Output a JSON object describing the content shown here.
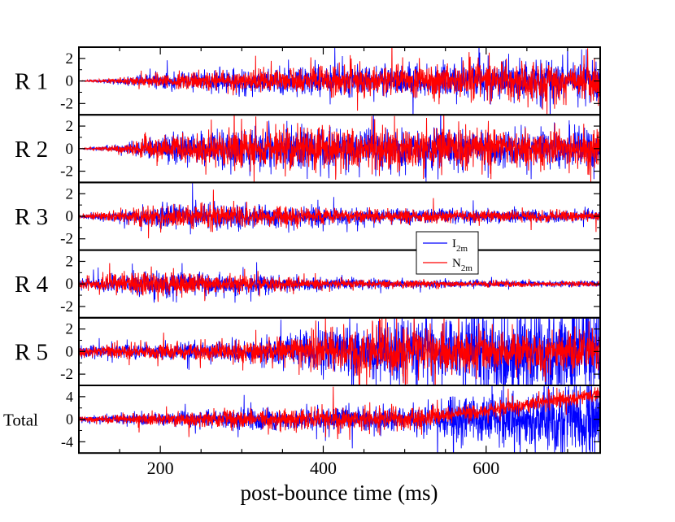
{
  "chart_data": {
    "type": "line",
    "xlabel": "post-bounce time (ms)",
    "xlim": [
      100,
      740
    ],
    "xticks": [
      200,
      400,
      600
    ],
    "legend": {
      "placement": "right-middle",
      "entries": [
        {
          "series": "I2m",
          "base": "I",
          "sub": "2m",
          "color": "#0000ff"
        },
        {
          "series": "N2m",
          "base": "N",
          "sub": "2m",
          "color": "#ff0000"
        }
      ]
    },
    "panels": [
      {
        "label": "R 1",
        "ylim": [
          -3,
          3
        ],
        "yticks": [
          -2,
          0,
          2
        ],
        "series": {
          "I2m": {
            "t": [
              100,
              150,
              200,
              300,
              400,
              500,
              600,
              740
            ],
            "amp": [
              0.0,
              0.3,
              0.8,
              1.2,
              1.5,
              1.6,
              1.8,
              2.0
            ]
          },
          "N2m": {
            "t": [
              100,
              150,
              200,
              300,
              400,
              500,
              600,
              740
            ],
            "amp": [
              0.0,
              0.3,
              0.7,
              1.1,
              1.4,
              1.6,
              2.0,
              2.3
            ]
          }
        }
      },
      {
        "label": "R 2",
        "ylim": [
          -3,
          3
        ],
        "yticks": [
          -2,
          0,
          2
        ],
        "series": {
          "I2m": {
            "t": [
              100,
              150,
              200,
              300,
              400,
              500,
              600,
              740
            ],
            "amp": [
              0.0,
              0.4,
              1.2,
              2.0,
              2.3,
              2.0,
              2.0,
              1.8
            ]
          },
          "N2m": {
            "t": [
              100,
              150,
              200,
              300,
              400,
              500,
              600,
              740
            ],
            "amp": [
              0.0,
              0.4,
              1.2,
              2.0,
              2.2,
              2.0,
              2.1,
              2.0
            ]
          }
        }
      },
      {
        "label": "R 3",
        "ylim": [
          -3,
          3
        ],
        "yticks": [
          -2,
          0,
          2
        ],
        "series": {
          "I2m": {
            "t": [
              100,
              150,
              200,
              300,
              400,
              500,
              600,
              740
            ],
            "amp": [
              0.2,
              0.6,
              1.2,
              1.2,
              0.9,
              0.8,
              0.7,
              0.6
            ]
          },
          "N2m": {
            "t": [
              100,
              150,
              200,
              300,
              400,
              500,
              600,
              740
            ],
            "amp": [
              0.2,
              0.6,
              1.1,
              1.1,
              0.8,
              0.7,
              0.6,
              0.5
            ]
          }
        }
      },
      {
        "label": "R 4",
        "ylim": [
          -3,
          3
        ],
        "yticks": [
          -2,
          0,
          2
        ],
        "series": {
          "I2m": {
            "t": [
              100,
              150,
              200,
              300,
              400,
              500,
              600,
              740
            ],
            "amp": [
              0.4,
              1.0,
              1.4,
              0.9,
              0.6,
              0.45,
              0.35,
              0.3
            ]
          },
          "N2m": {
            "t": [
              100,
              150,
              200,
              300,
              400,
              500,
              600,
              740
            ],
            "amp": [
              0.4,
              1.0,
              1.3,
              0.8,
              0.5,
              0.4,
              0.3,
              0.25
            ]
          }
        }
      },
      {
        "label": "R 5",
        "ylim": [
          -3,
          3
        ],
        "yticks": [
          -2,
          0,
          2
        ],
        "series": {
          "I2m": {
            "t": [
              100,
              200,
              300,
              350,
              400,
              500,
              600,
              740
            ],
            "amp": [
              0.6,
              0.8,
              1.0,
              1.5,
              2.2,
              3.2,
              4.5,
              5.0
            ]
          },
          "N2m": {
            "t": [
              100,
              200,
              300,
              350,
              400,
              500,
              600,
              740
            ],
            "amp": [
              0.6,
              0.8,
              1.0,
              1.5,
              2.0,
              2.6,
              2.0,
              1.8
            ]
          }
        }
      },
      {
        "label": "Total",
        "ylim": [
          -6,
          6
        ],
        "yticks": [
          -4,
          0,
          4
        ],
        "series": {
          "I2m": {
            "t": [
              100,
              200,
              300,
              400,
              500,
              600,
              740
            ],
            "amp": [
              0.5,
              1.5,
              2.0,
              2.5,
              2.5,
              5.5,
              7.0
            ]
          },
          "N2m": {
            "t": [
              100,
              200,
              300,
              400,
              500,
              600,
              740
            ],
            "amp": [
              0.5,
              1.4,
              1.8,
              2.2,
              2.0,
              1.6,
              1.6
            ],
            "drift": {
              "t": [
                100,
                500,
                600,
                740
              ],
              "v": [
                0,
                0,
                1.5,
                4.5
              ]
            }
          }
        }
      }
    ]
  }
}
